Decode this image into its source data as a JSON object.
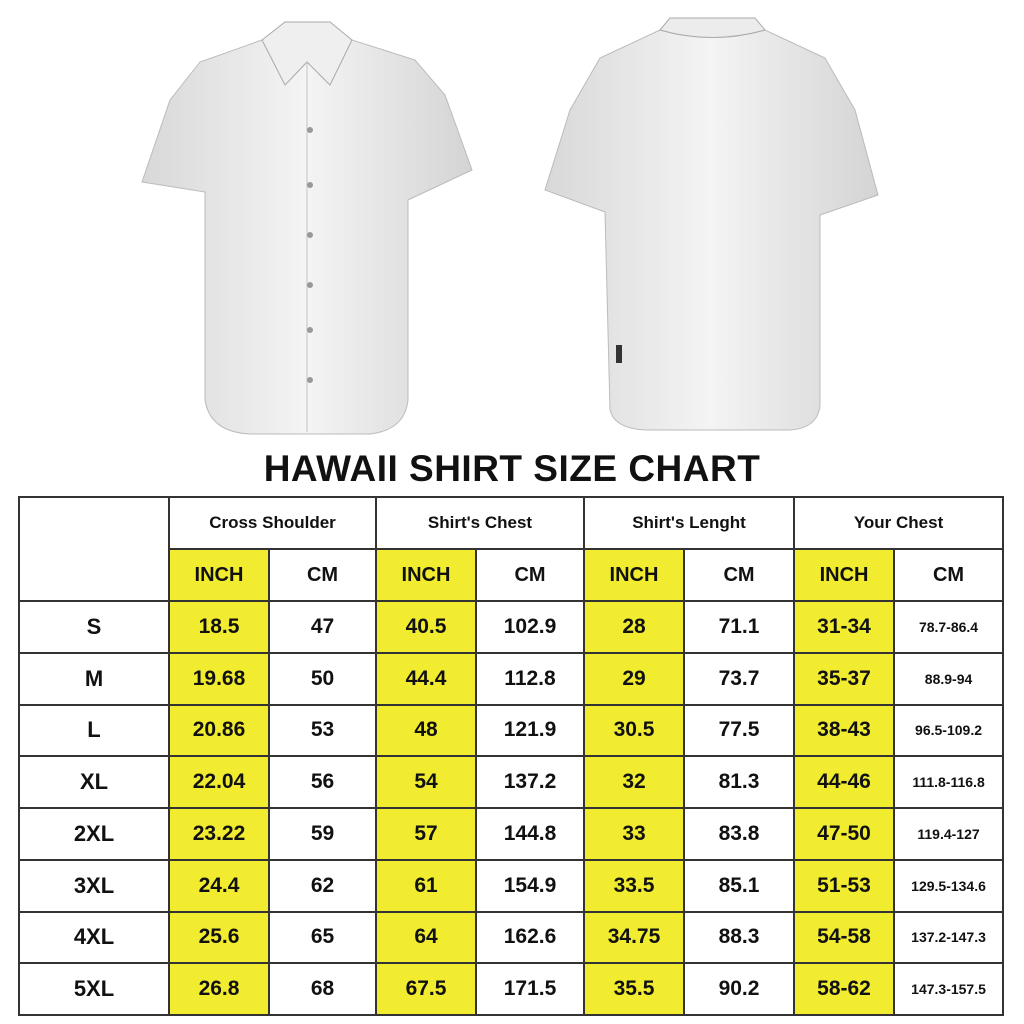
{
  "images": {
    "front": "white-shirt-front",
    "back": "white-shirt-back"
  },
  "title": "HAWAII SHIRT SIZE CHART",
  "colors": {
    "highlight": "#f1ec2f",
    "border": "#333333"
  },
  "chart_data": {
    "type": "table",
    "groups": [
      "Cross Shoulder",
      "Shirt's Chest",
      "Shirt's Lenght",
      "Your Chest"
    ],
    "units": [
      "INCH",
      "CM"
    ],
    "rows": [
      {
        "size": "S",
        "values": [
          "18.5",
          "47",
          "40.5",
          "102.9",
          "28",
          "71.1",
          "31-34",
          "78.7-86.4"
        ]
      },
      {
        "size": "M",
        "values": [
          "19.68",
          "50",
          "44.4",
          "112.8",
          "29",
          "73.7",
          "35-37",
          "88.9-94"
        ]
      },
      {
        "size": "L",
        "values": [
          "20.86",
          "53",
          "48",
          "121.9",
          "30.5",
          "77.5",
          "38-43",
          "96.5-109.2"
        ]
      },
      {
        "size": "XL",
        "values": [
          "22.04",
          "56",
          "54",
          "137.2",
          "32",
          "81.3",
          "44-46",
          "111.8-116.8"
        ]
      },
      {
        "size": "2XL",
        "values": [
          "23.22",
          "59",
          "57",
          "144.8",
          "33",
          "83.8",
          "47-50",
          "119.4-127"
        ]
      },
      {
        "size": "3XL",
        "values": [
          "24.4",
          "62",
          "61",
          "154.9",
          "33.5",
          "85.1",
          "51-53",
          "129.5-134.6"
        ]
      },
      {
        "size": "4XL",
        "values": [
          "25.6",
          "65",
          "64",
          "162.6",
          "34.75",
          "88.3",
          "54-58",
          "137.2-147.3"
        ]
      },
      {
        "size": "5XL",
        "values": [
          "26.8",
          "68",
          "67.5",
          "171.5",
          "35.5",
          "90.2",
          "58-62",
          "147.3-157.5"
        ]
      }
    ]
  }
}
